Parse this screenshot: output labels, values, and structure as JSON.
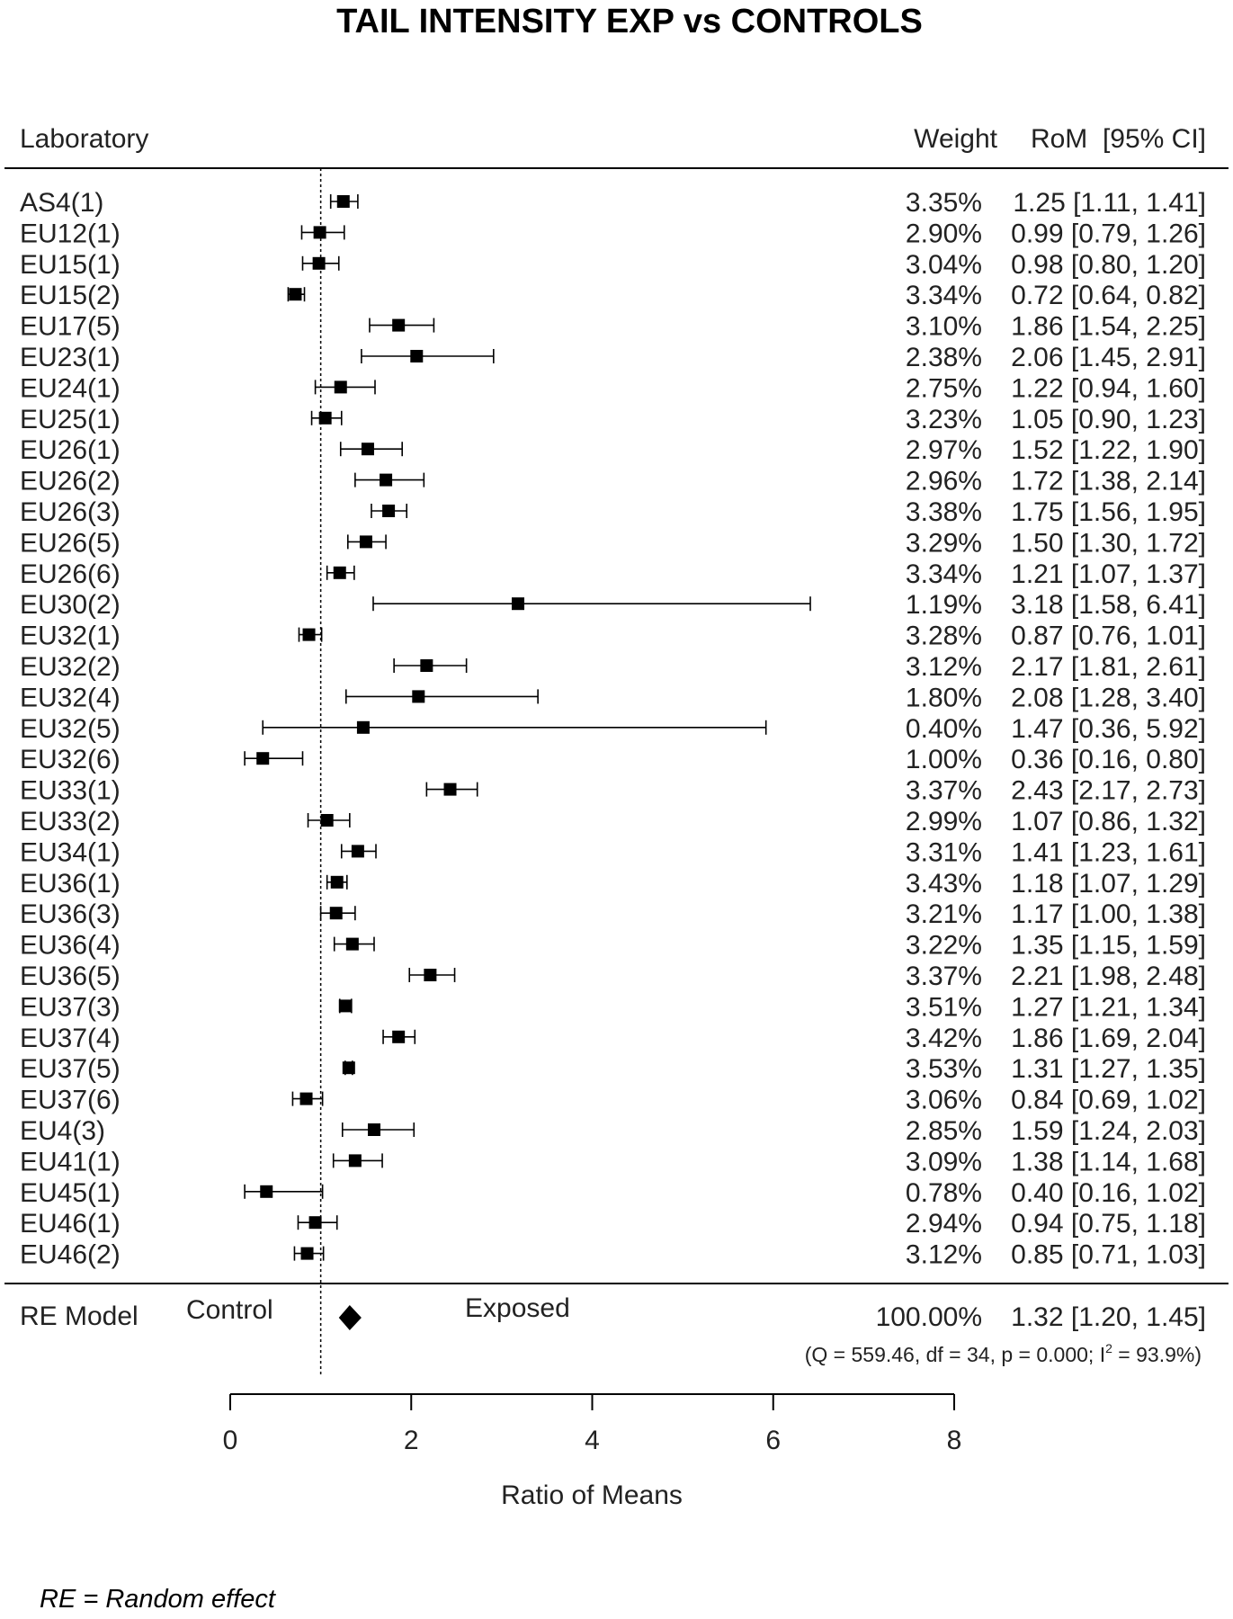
{
  "chart_data": {
    "type": "forest",
    "title": "TAIL INTENSITY EXP vs CONTROLS",
    "header": {
      "study": "Laboratory",
      "weight": "Weight",
      "estimate": "RoM  [95% CI]"
    },
    "xlabel": "Ratio of Means",
    "xlim": [
      0,
      8
    ],
    "xticks": [
      "0",
      "2",
      "4",
      "6",
      "8"
    ],
    "reference_line": 1,
    "side_labels": {
      "left": "Control",
      "right": "Exposed"
    },
    "studies": [
      {
        "label": "AS4(1)",
        "rom": 1.25,
        "lo": 1.11,
        "hi": 1.41,
        "weight": "3.35%",
        "text": "1.25 [1.11, 1.41]"
      },
      {
        "label": "EU12(1)",
        "rom": 0.99,
        "lo": 0.79,
        "hi": 1.26,
        "weight": "2.90%",
        "text": "0.99 [0.79, 1.26]"
      },
      {
        "label": "EU15(1)",
        "rom": 0.98,
        "lo": 0.8,
        "hi": 1.2,
        "weight": "3.04%",
        "text": "0.98 [0.80, 1.20]"
      },
      {
        "label": "EU15(2)",
        "rom": 0.72,
        "lo": 0.64,
        "hi": 0.82,
        "weight": "3.34%",
        "text": "0.72 [0.64, 0.82]"
      },
      {
        "label": "EU17(5)",
        "rom": 1.86,
        "lo": 1.54,
        "hi": 2.25,
        "weight": "3.10%",
        "text": "1.86 [1.54, 2.25]"
      },
      {
        "label": "EU23(1)",
        "rom": 2.06,
        "lo": 1.45,
        "hi": 2.91,
        "weight": "2.38%",
        "text": "2.06 [1.45, 2.91]"
      },
      {
        "label": "EU24(1)",
        "rom": 1.22,
        "lo": 0.94,
        "hi": 1.6,
        "weight": "2.75%",
        "text": "1.22 [0.94, 1.60]"
      },
      {
        "label": "EU25(1)",
        "rom": 1.05,
        "lo": 0.9,
        "hi": 1.23,
        "weight": "3.23%",
        "text": "1.05 [0.90, 1.23]"
      },
      {
        "label": "EU26(1)",
        "rom": 1.52,
        "lo": 1.22,
        "hi": 1.9,
        "weight": "2.97%",
        "text": "1.52 [1.22, 1.90]"
      },
      {
        "label": "EU26(2)",
        "rom": 1.72,
        "lo": 1.38,
        "hi": 2.14,
        "weight": "2.96%",
        "text": "1.72 [1.38, 2.14]"
      },
      {
        "label": "EU26(3)",
        "rom": 1.75,
        "lo": 1.56,
        "hi": 1.95,
        "weight": "3.38%",
        "text": "1.75 [1.56, 1.95]"
      },
      {
        "label": "EU26(5)",
        "rom": 1.5,
        "lo": 1.3,
        "hi": 1.72,
        "weight": "3.29%",
        "text": "1.50 [1.30, 1.72]"
      },
      {
        "label": "EU26(6)",
        "rom": 1.21,
        "lo": 1.07,
        "hi": 1.37,
        "weight": "3.34%",
        "text": "1.21 [1.07, 1.37]"
      },
      {
        "label": "EU30(2)",
        "rom": 3.18,
        "lo": 1.58,
        "hi": 6.41,
        "weight": "1.19%",
        "text": "3.18 [1.58, 6.41]"
      },
      {
        "label": "EU32(1)",
        "rom": 0.87,
        "lo": 0.76,
        "hi": 1.01,
        "weight": "3.28%",
        "text": "0.87 [0.76, 1.01]"
      },
      {
        "label": "EU32(2)",
        "rom": 2.17,
        "lo": 1.81,
        "hi": 2.61,
        "weight": "3.12%",
        "text": "2.17 [1.81, 2.61]"
      },
      {
        "label": "EU32(4)",
        "rom": 2.08,
        "lo": 1.28,
        "hi": 3.4,
        "weight": "1.80%",
        "text": "2.08 [1.28, 3.40]"
      },
      {
        "label": "EU32(5)",
        "rom": 1.47,
        "lo": 0.36,
        "hi": 5.92,
        "weight": "0.40%",
        "text": "1.47 [0.36, 5.92]"
      },
      {
        "label": "EU32(6)",
        "rom": 0.36,
        "lo": 0.16,
        "hi": 0.8,
        "weight": "1.00%",
        "text": "0.36 [0.16, 0.80]"
      },
      {
        "label": "EU33(1)",
        "rom": 2.43,
        "lo": 2.17,
        "hi": 2.73,
        "weight": "3.37%",
        "text": "2.43 [2.17, 2.73]"
      },
      {
        "label": "EU33(2)",
        "rom": 1.07,
        "lo": 0.86,
        "hi": 1.32,
        "weight": "2.99%",
        "text": "1.07 [0.86, 1.32]"
      },
      {
        "label": "EU34(1)",
        "rom": 1.41,
        "lo": 1.23,
        "hi": 1.61,
        "weight": "3.31%",
        "text": "1.41 [1.23, 1.61]"
      },
      {
        "label": "EU36(1)",
        "rom": 1.18,
        "lo": 1.07,
        "hi": 1.29,
        "weight": "3.43%",
        "text": "1.18 [1.07, 1.29]"
      },
      {
        "label": "EU36(3)",
        "rom": 1.17,
        "lo": 1.0,
        "hi": 1.38,
        "weight": "3.21%",
        "text": "1.17 [1.00, 1.38]"
      },
      {
        "label": "EU36(4)",
        "rom": 1.35,
        "lo": 1.15,
        "hi": 1.59,
        "weight": "3.22%",
        "text": "1.35 [1.15, 1.59]"
      },
      {
        "label": "EU36(5)",
        "rom": 2.21,
        "lo": 1.98,
        "hi": 2.48,
        "weight": "3.37%",
        "text": "2.21 [1.98, 2.48]"
      },
      {
        "label": "EU37(3)",
        "rom": 1.27,
        "lo": 1.21,
        "hi": 1.34,
        "weight": "3.51%",
        "text": "1.27 [1.21, 1.34]"
      },
      {
        "label": "EU37(4)",
        "rom": 1.86,
        "lo": 1.69,
        "hi": 2.04,
        "weight": "3.42%",
        "text": "1.86 [1.69, 2.04]"
      },
      {
        "label": "EU37(5)",
        "rom": 1.31,
        "lo": 1.27,
        "hi": 1.35,
        "weight": "3.53%",
        "text": "1.31 [1.27, 1.35]"
      },
      {
        "label": "EU37(6)",
        "rom": 0.84,
        "lo": 0.69,
        "hi": 1.02,
        "weight": "3.06%",
        "text": "0.84 [0.69, 1.02]"
      },
      {
        "label": "EU4(3)",
        "rom": 1.59,
        "lo": 1.24,
        "hi": 2.03,
        "weight": "2.85%",
        "text": "1.59 [1.24, 2.03]"
      },
      {
        "label": "EU41(1)",
        "rom": 1.38,
        "lo": 1.14,
        "hi": 1.68,
        "weight": "3.09%",
        "text": "1.38 [1.14, 1.68]"
      },
      {
        "label": "EU45(1)",
        "rom": 0.4,
        "lo": 0.16,
        "hi": 1.02,
        "weight": "0.78%",
        "text": "0.40 [0.16, 1.02]"
      },
      {
        "label": "EU46(1)",
        "rom": 0.94,
        "lo": 0.75,
        "hi": 1.18,
        "weight": "2.94%",
        "text": "0.94 [0.75, 1.18]"
      },
      {
        "label": "EU46(2)",
        "rom": 0.85,
        "lo": 0.71,
        "hi": 1.03,
        "weight": "3.12%",
        "text": "0.85 [0.71, 1.03]"
      }
    ],
    "summary": {
      "label": "RE Model",
      "rom": 1.32,
      "lo": 1.2,
      "hi": 1.45,
      "weight": "100.00%",
      "text": "1.32 [1.20, 1.45]",
      "heterogeneity_prefix": "(Q = 559.46, df = 34, p = 0.000; I",
      "heterogeneity_sup": "2",
      "heterogeneity_suffix": " = 93.9%)"
    }
  },
  "footnote": "RE = Random effect"
}
